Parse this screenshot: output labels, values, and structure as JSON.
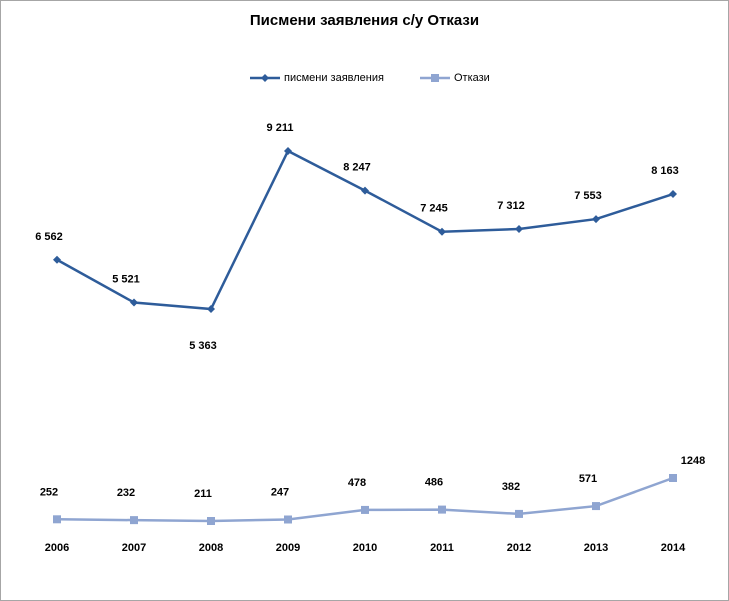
{
  "chart_data": {
    "type": "line",
    "title": "Писмени заявления с/у Откази",
    "categories": [
      "2006",
      "2007",
      "2008",
      "2009",
      "2010",
      "2011",
      "2012",
      "2013",
      "2014"
    ],
    "series": [
      {
        "name": "писмени заявления",
        "values": [
          6562,
          5521,
          5363,
          9211,
          8247,
          7245,
          7312,
          7553,
          8163
        ],
        "labels": [
          "6 562",
          "5 521",
          "5 363",
          "9 211",
          "8 247",
          "7 245",
          "7 312",
          "7 553",
          "8 163"
        ],
        "color": "#2e5c9a",
        "marker": "diamond"
      },
      {
        "name": "Откази",
        "values": [
          252,
          232,
          211,
          247,
          478,
          486,
          382,
          571,
          1248
        ],
        "labels": [
          "252",
          "232",
          "211",
          "247",
          "478",
          "486",
          "382",
          "571",
          "1248"
        ],
        "color": "#8fa5d1",
        "marker": "square"
      }
    ],
    "legend_position": "top-center",
    "grid": false
  }
}
